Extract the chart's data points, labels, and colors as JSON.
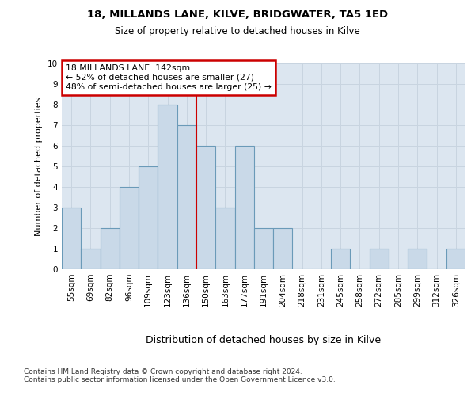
{
  "title1": "18, MILLANDS LANE, KILVE, BRIDGWATER, TA5 1ED",
  "title2": "Size of property relative to detached houses in Kilve",
  "xlabel": "Distribution of detached houses by size in Kilve",
  "ylabel": "Number of detached properties",
  "footnote": "Contains HM Land Registry data © Crown copyright and database right 2024.\nContains public sector information licensed under the Open Government Licence v3.0.",
  "bin_labels": [
    "55sqm",
    "69sqm",
    "82sqm",
    "96sqm",
    "109sqm",
    "123sqm",
    "136sqm",
    "150sqm",
    "163sqm",
    "177sqm",
    "191sqm",
    "204sqm",
    "218sqm",
    "231sqm",
    "245sqm",
    "258sqm",
    "272sqm",
    "285sqm",
    "299sqm",
    "312sqm",
    "326sqm"
  ],
  "bar_values": [
    3,
    1,
    2,
    4,
    5,
    8,
    7,
    6,
    3,
    6,
    2,
    2,
    0,
    0,
    1,
    0,
    1,
    0,
    1,
    0,
    1
  ],
  "bar_color": "#c9d9e8",
  "bar_edge_color": "#6a9ab8",
  "grid_color": "#c8d4e0",
  "background_color": "#dce6f0",
  "red_line_x": 6.5,
  "annotation_text": "18 MILLANDS LANE: 142sqm\n← 52% of detached houses are smaller (27)\n48% of semi-detached houses are larger (25) →",
  "annotation_box_color": "white",
  "annotation_box_edge": "#cc0000",
  "ylim": [
    0,
    10
  ],
  "yticks": [
    0,
    1,
    2,
    3,
    4,
    5,
    6,
    7,
    8,
    9,
    10
  ],
  "title1_fontsize": 9.5,
  "title2_fontsize": 8.5,
  "xlabel_fontsize": 9.0,
  "ylabel_fontsize": 8.0,
  "tick_fontsize": 7.5,
  "footnote_fontsize": 6.5
}
